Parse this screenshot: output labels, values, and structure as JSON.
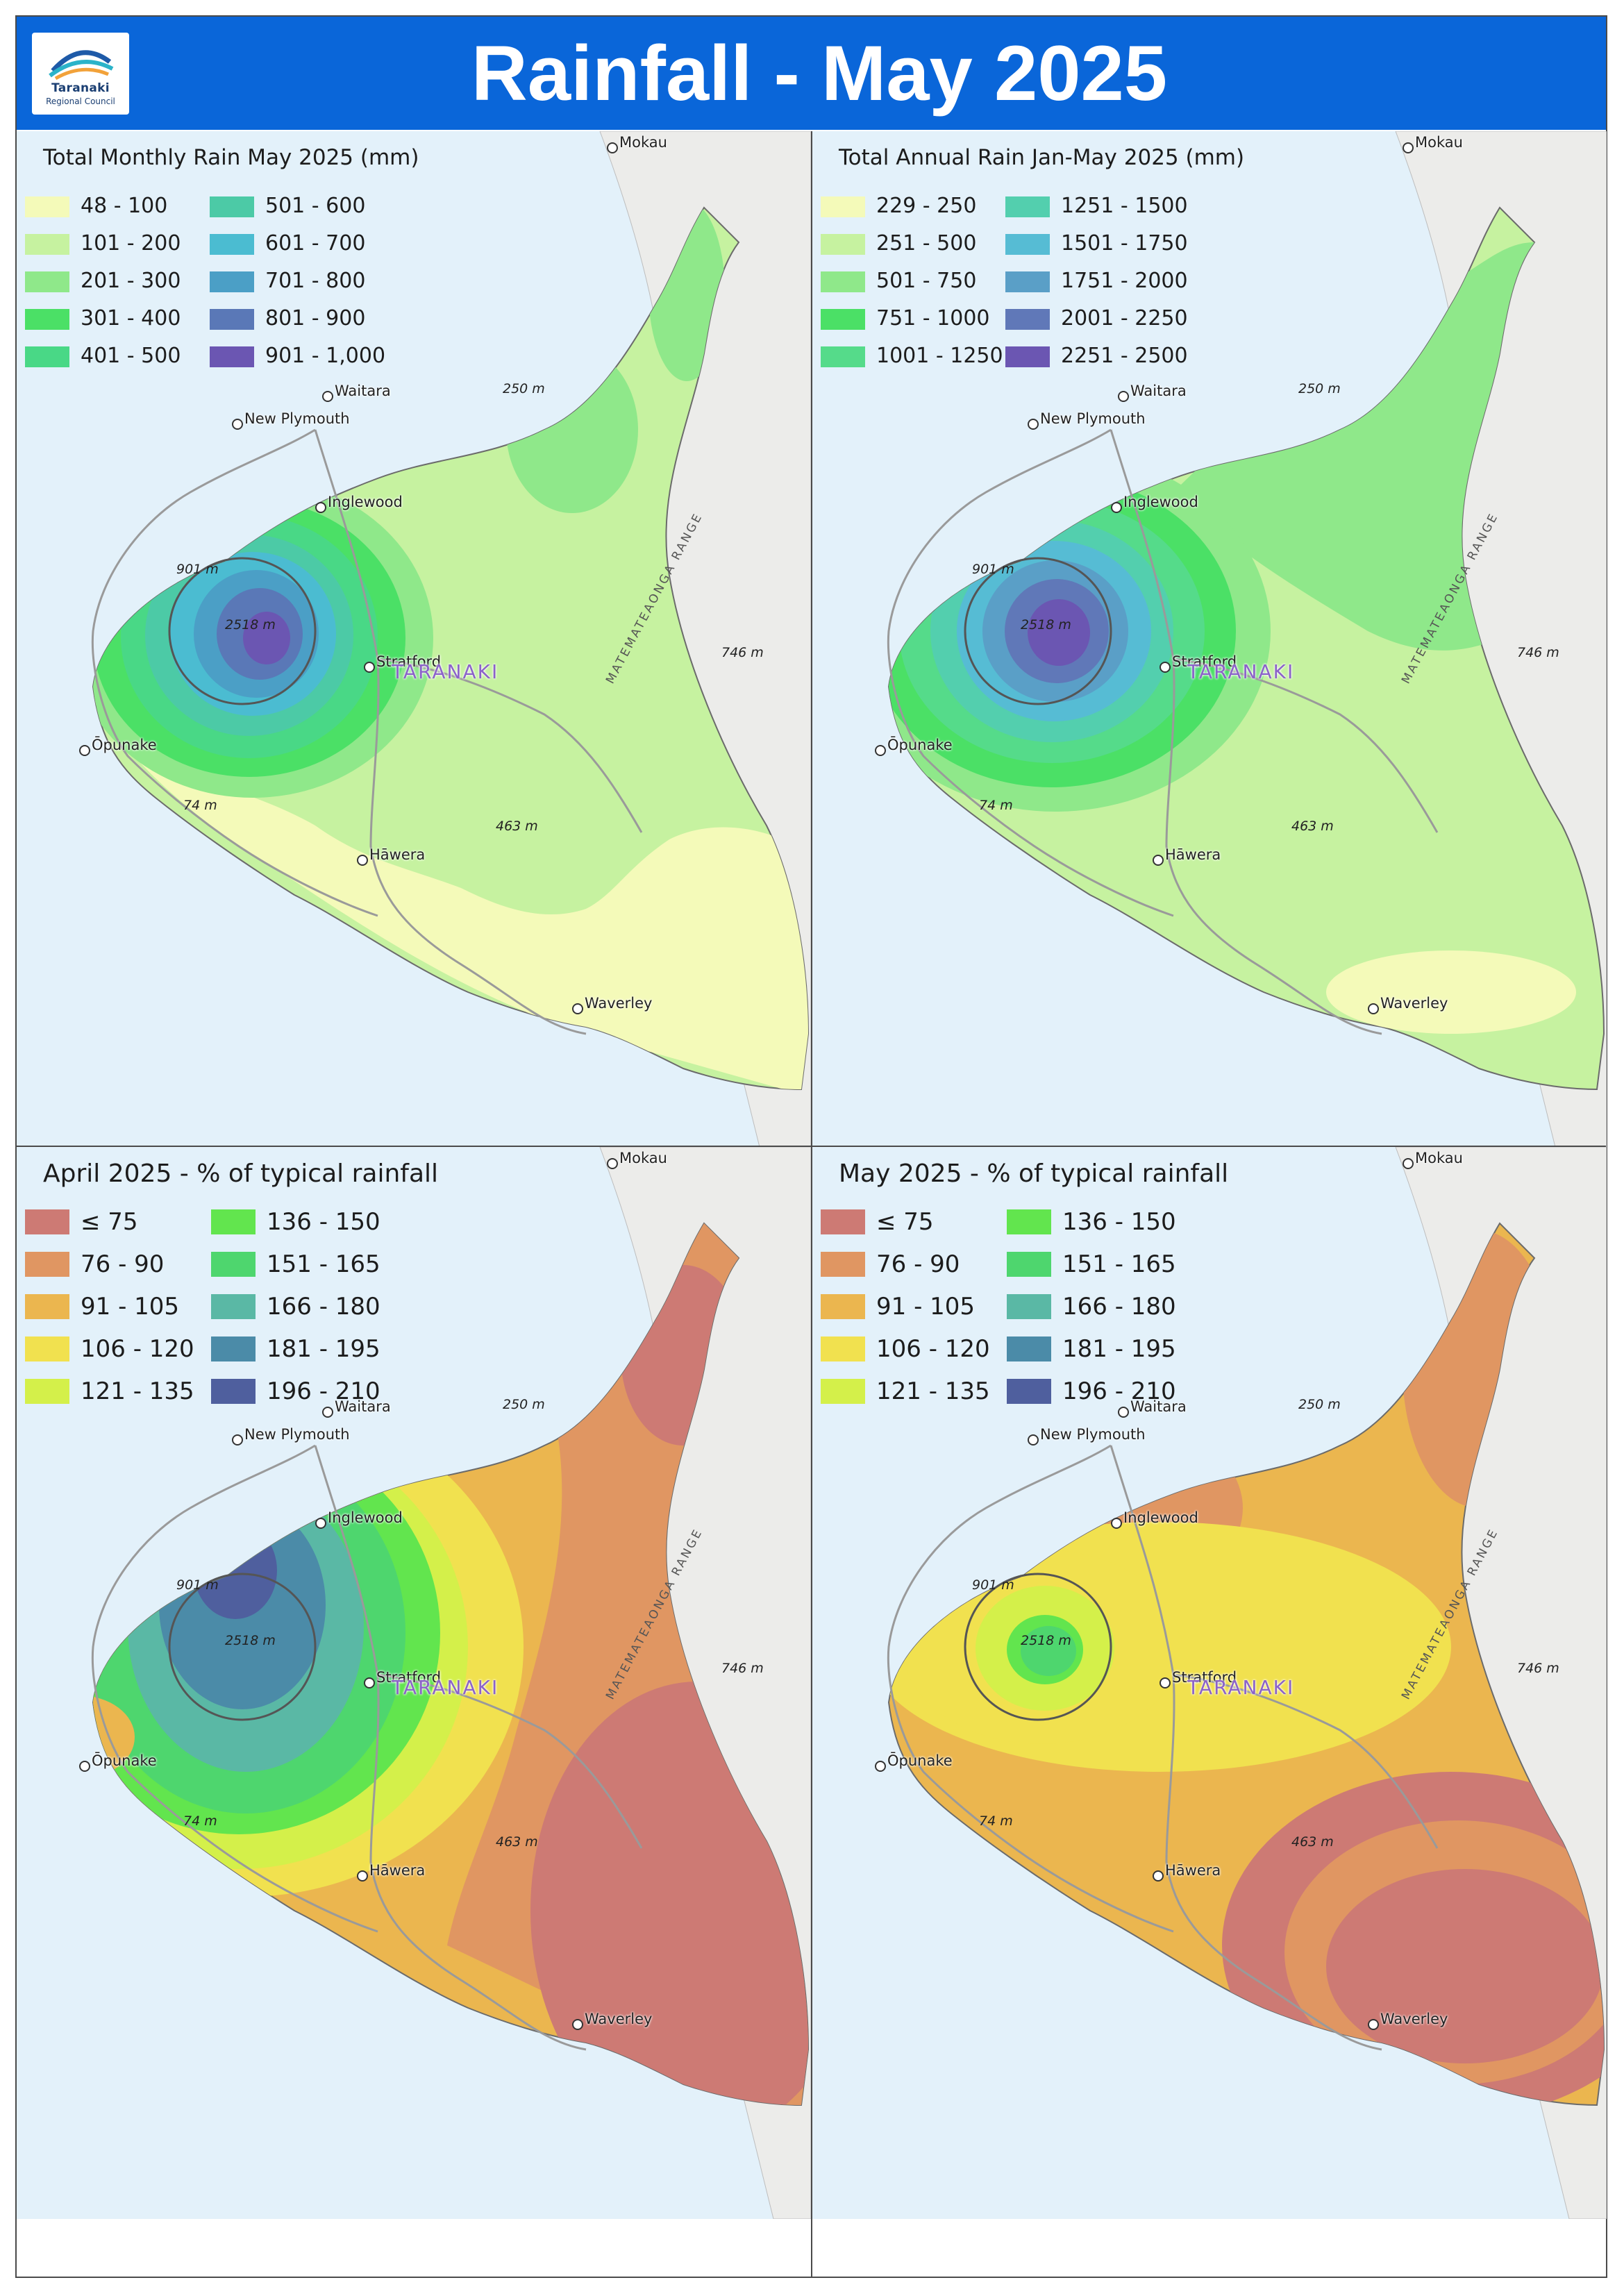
{
  "header": {
    "title": "Rainfall - May 2025",
    "logo_name": "Taranaki",
    "logo_sub": "Regional Council",
    "bg_color": "#0a66d9"
  },
  "places": {
    "mokau": "Mokau",
    "waitara": "Waitara",
    "new_plymouth": "New Plymouth",
    "inglewood": "Inglewood",
    "stratford": "Stratford",
    "opunake": "Ōpunake",
    "hawera": "Hāwera",
    "waverley": "Waverley",
    "region": "TARANAKI",
    "range": "MATEMATEAONGA RANGE"
  },
  "elevations": {
    "e250": "250 m",
    "e901": "901 m",
    "e2518": "2518 m",
    "e746": "746 m",
    "e74": "74 m",
    "e463": "463 m"
  },
  "panels": [
    {
      "legend_title": "Total Monthly Rain May 2025 (mm)",
      "legend": [
        {
          "label": "48 - 100",
          "color": "#f4fab9"
        },
        {
          "label": "101 - 200",
          "color": "#c6f2a0"
        },
        {
          "label": "201 - 300",
          "color": "#8fe88a"
        },
        {
          "label": "301 - 400",
          "color": "#4be066"
        },
        {
          "label": "401 - 500",
          "color": "#49d886"
        },
        {
          "label": "501 - 600",
          "color": "#4ccaa6"
        },
        {
          "label": "601 - 700",
          "color": "#4bbcd1"
        },
        {
          "label": "701 - 800",
          "color": "#4b9fc6"
        },
        {
          "label": "801 - 900",
          "color": "#5a78b7"
        },
        {
          "label": "901 - 1,000",
          "color": "#6b56b2"
        }
      ]
    },
    {
      "legend_title": "Total Annual Rain Jan-May 2025 (mm)",
      "legend": [
        {
          "label": "229 - 250",
          "color": "#f4fab9"
        },
        {
          "label": "251 - 500",
          "color": "#c6f2a0"
        },
        {
          "label": "501 - 750",
          "color": "#8fe88a"
        },
        {
          "label": "751 - 1000",
          "color": "#4be066"
        },
        {
          "label": "1001 - 1250",
          "color": "#55db8a"
        },
        {
          "label": "1251 - 1500",
          "color": "#53cfae"
        },
        {
          "label": "1501 - 1750",
          "color": "#56bcd4"
        },
        {
          "label": "1751 - 2000",
          "color": "#5a9fc7"
        },
        {
          "label": "2001 - 2250",
          "color": "#6078b8"
        },
        {
          "label": "2251 - 2500",
          "color": "#6b56b2"
        }
      ]
    },
    {
      "legend_title": "April 2025 - % of typical rainfall",
      "legend": [
        {
          "label": "≤ 75",
          "color": "#cd7a74"
        },
        {
          "label": "76 - 90",
          "color": "#e09662"
        },
        {
          "label": "91 - 105",
          "color": "#ebb64f"
        },
        {
          "label": "106 - 120",
          "color": "#f1e14f"
        },
        {
          "label": "121 - 135",
          "color": "#d4f04a"
        },
        {
          "label": "136 - 150",
          "color": "#62e54e"
        },
        {
          "label": "151 - 165",
          "color": "#4ed66e"
        },
        {
          "label": "166 - 180",
          "color": "#5ab8a5"
        },
        {
          "label": "181 - 195",
          "color": "#4b8ba8"
        },
        {
          "label": "196 - 210",
          "color": "#4f5f9e"
        }
      ]
    },
    {
      "legend_title": "May 2025 - % of typical rainfall",
      "legend": [
        {
          "label": "≤ 75",
          "color": "#cd7a74"
        },
        {
          "label": "76 - 90",
          "color": "#e09662"
        },
        {
          "label": "91 - 105",
          "color": "#ebb64f"
        },
        {
          "label": "106 - 120",
          "color": "#f1e14f"
        },
        {
          "label": "121 - 135",
          "color": "#d4f04a"
        },
        {
          "label": "136 - 150",
          "color": "#62e54e"
        },
        {
          "label": "151 - 165",
          "color": "#4ed66e"
        },
        {
          "label": "166 - 180",
          "color": "#5ab8a5"
        },
        {
          "label": "181 - 195",
          "color": "#4b8ba8"
        },
        {
          "label": "196 - 210",
          "color": "#4f5f9e"
        }
      ]
    }
  ],
  "colors": {
    "sea": "#e3f1fa",
    "terrain": "#ececea",
    "roads": "#9a9a9a"
  }
}
